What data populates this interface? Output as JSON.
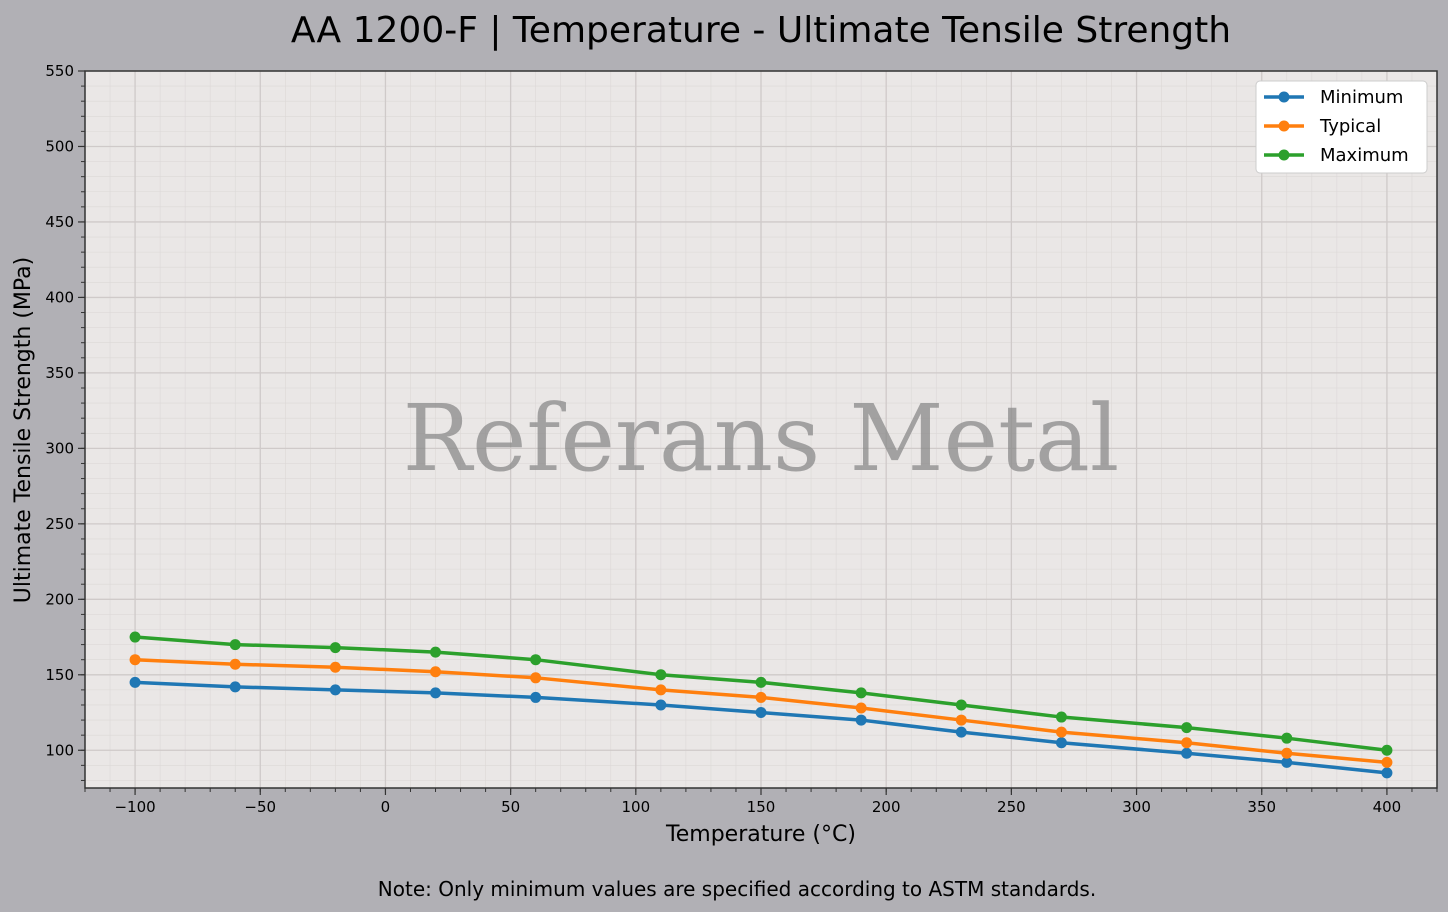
{
  "chart_data": {
    "type": "line",
    "title": "AA 1200-F | Temperature - Ultimate Tensile Strength",
    "xlabel": "Temperature (°C)",
    "ylabel": "Ultimate Tensile Strength (MPa)",
    "xlim": [
      -120,
      420
    ],
    "ylim": [
      75,
      550
    ],
    "xticks": [
      -100,
      -50,
      0,
      50,
      100,
      150,
      200,
      250,
      300,
      350,
      400
    ],
    "xtick_labels": [
      "−100",
      "−50",
      "0",
      "50",
      "100",
      "150",
      "200",
      "250",
      "300",
      "350",
      "400"
    ],
    "yticks": [
      100,
      150,
      200,
      250,
      300,
      350,
      400,
      450,
      500,
      550
    ],
    "grid": true,
    "legend_position": "top-right",
    "x": [
      -100,
      -60,
      -20,
      20,
      60,
      110,
      150,
      190,
      230,
      270,
      320,
      360,
      400
    ],
    "series": [
      {
        "name": "Minimum",
        "color": "#1f77b4",
        "values": [
          145,
          142,
          140,
          138,
          135,
          130,
          125,
          120,
          112,
          105,
          98,
          92,
          85
        ]
      },
      {
        "name": "Typical",
        "color": "#ff7f0e",
        "values": [
          160,
          157,
          155,
          152,
          148,
          140,
          135,
          128,
          120,
          112,
          105,
          98,
          92
        ]
      },
      {
        "name": "Maximum",
        "color": "#2ca02c",
        "values": [
          175,
          170,
          168,
          165,
          160,
          150,
          145,
          138,
          130,
          122,
          115,
          108,
          100
        ]
      }
    ],
    "watermark": "Referans Metal",
    "note": "Note: Only minimum values are specified according to ASTM standards."
  }
}
